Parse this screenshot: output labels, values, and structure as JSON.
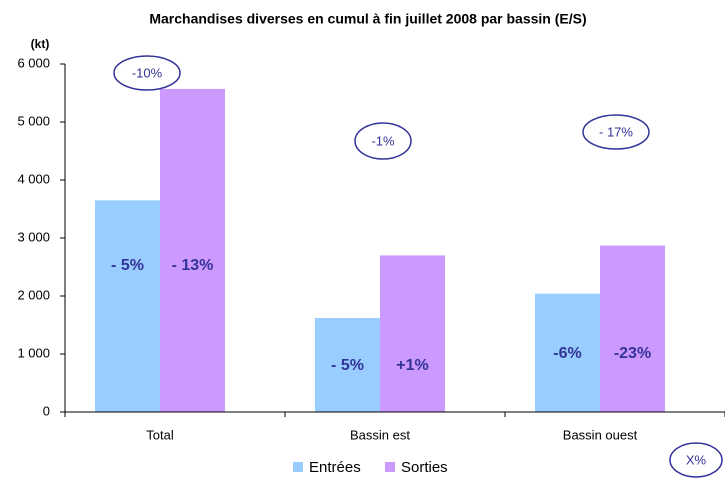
{
  "chart_data": {
    "type": "bar",
    "title": "Marchandises diverses en cumul à fin juillet 2008 par bassin (E/S)",
    "y_axis_label": "(kt)",
    "categories": [
      "Total",
      "Bassin est",
      "Bassin ouest"
    ],
    "series": [
      {
        "name": "Entrées",
        "color": "#99ccff",
        "values": [
          3650,
          1620,
          2040
        ],
        "change_labels": [
          "- 5%",
          "- 5%",
          "-6%"
        ]
      },
      {
        "name": "Sorties",
        "color": "#cc99ff",
        "values": [
          5570,
          2700,
          2870
        ],
        "change_labels": [
          "- 13%",
          "+1%",
          "-23%"
        ]
      }
    ],
    "group_annotations": [
      "-10%",
      "-1%",
      "- 17%"
    ],
    "legend_note": "X%",
    "ylim": [
      0,
      6000
    ],
    "yticks": [
      0,
      {
        "value": 1000,
        "label": "1 000"
      },
      {
        "value": 2000,
        "label": "2 000"
      },
      {
        "value": 3000,
        "label": "3 000"
      },
      {
        "value": 4000,
        "label": "4 000"
      },
      {
        "value": 5000,
        "label": "5 000"
      },
      {
        "value": 6000,
        "label": "6 000"
      }
    ],
    "legend": "bottom",
    "grid": false
  }
}
